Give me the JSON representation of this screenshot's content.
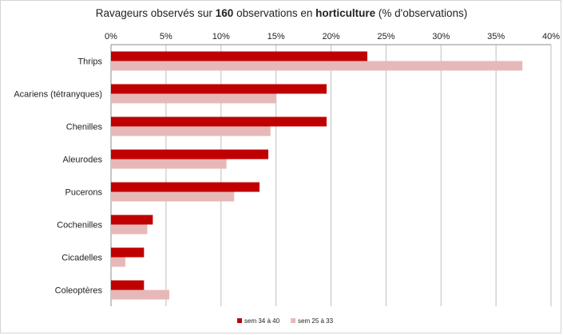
{
  "chart_data": {
    "type": "bar",
    "orientation": "horizontal",
    "title_parts": [
      "Ravageurs observés sur ",
      "160",
      " observations en ",
      "horticulture",
      " (% d'observations)"
    ],
    "xlabel": "",
    "ylabel": "",
    "xlim": [
      0,
      40
    ],
    "x_ticks": [
      0,
      5,
      10,
      15,
      20,
      25,
      30,
      35,
      40
    ],
    "x_tick_labels": [
      "0%",
      "5%",
      "10%",
      "15%",
      "20%",
      "25%",
      "30%",
      "35%",
      "40%"
    ],
    "x_axis_position": "top",
    "grid": true,
    "categories": [
      "Thrips",
      "Acariens (tétranyques)",
      "Chenilles",
      "Aleurodes",
      "Pucerons",
      "Cochenilles",
      "Cicadelles",
      "Coleoptères"
    ],
    "series": [
      {
        "name": "sem 34 à 40",
        "color": "#c00000",
        "values": [
          23.3,
          19.6,
          19.6,
          14.3,
          13.5,
          3.8,
          3.0,
          3.0
        ]
      },
      {
        "name": "sem 25 à 33",
        "color": "#e6b9b8",
        "values": [
          37.4,
          15.0,
          14.5,
          10.5,
          11.2,
          3.3,
          1.3,
          5.3
        ]
      }
    ],
    "legend_position": "bottom"
  }
}
